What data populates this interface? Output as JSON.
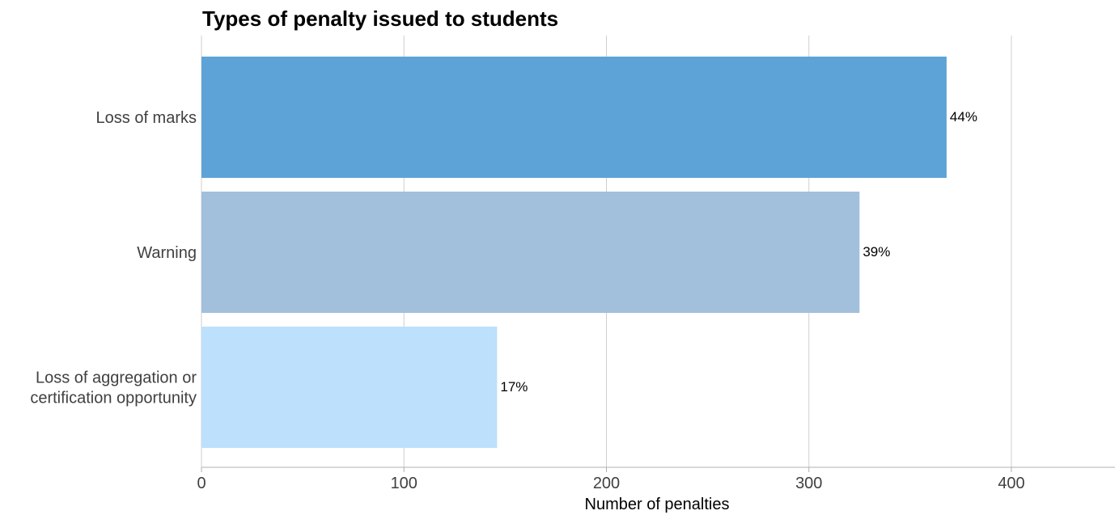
{
  "chart_data": {
    "type": "bar",
    "orientation": "horizontal",
    "title": "Types of penalty issued to students",
    "xlabel": "Number of penalties",
    "ylabel": "",
    "xlim": [
      0,
      450
    ],
    "xticks": [
      0,
      100,
      200,
      300,
      400
    ],
    "grid": "vertical",
    "legend": "none",
    "categories": [
      "Loss of marks",
      "Warning",
      "Loss of aggregation or certification opportunity"
    ],
    "category_lines": [
      [
        "Loss of marks"
      ],
      [
        "Warning"
      ],
      [
        "Loss of aggregation or",
        "certification opportunity"
      ]
    ],
    "values": [
      368,
      325,
      146
    ],
    "data_labels": [
      "44%",
      "39%",
      "17%"
    ],
    "colors": [
      "#5ea3d8",
      "#a2bfdc",
      "#bde0fd"
    ]
  }
}
